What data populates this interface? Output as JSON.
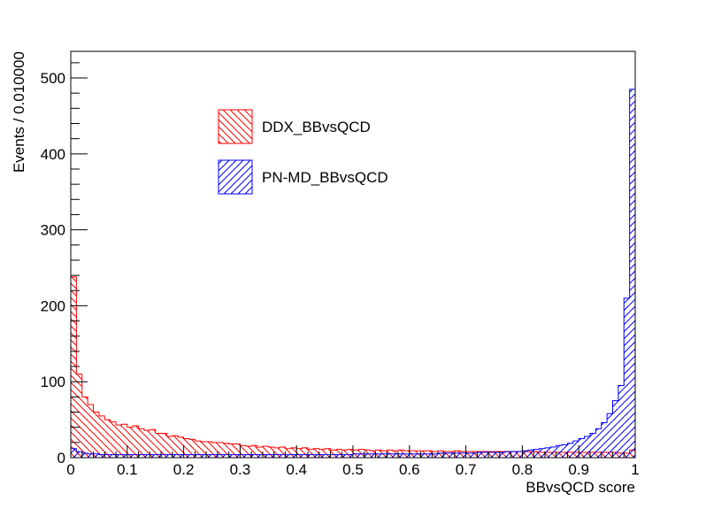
{
  "chart_data": {
    "type": "histogram",
    "xlabel": "BBvsQCD score",
    "ylabel": "Events / 0.010000",
    "xlim": [
      0,
      1
    ],
    "ylim": [
      0,
      535
    ],
    "bin_width": 0.01,
    "x_ticks": [
      "0",
      "0.1",
      "0.2",
      "0.3",
      "0.4",
      "0.5",
      "0.6",
      "0.7",
      "0.8",
      "0.9",
      "1"
    ],
    "y_ticks": [
      "0",
      "100",
      "200",
      "300",
      "400",
      "500"
    ],
    "legend_position": "upper-left",
    "series": [
      {
        "name": "DDX_BBvsQCD",
        "color": "#ff0000",
        "hatch": "backslash",
        "values": [
          238,
          110,
          80,
          70,
          60,
          55,
          50,
          47,
          43,
          44,
          40,
          42,
          38,
          36,
          37,
          32,
          32,
          28,
          29,
          27,
          25,
          24,
          22,
          21,
          21,
          20,
          20,
          19,
          18,
          18,
          16,
          15,
          16,
          14,
          15,
          14,
          13,
          14,
          12,
          13,
          12,
          13,
          11,
          12,
          11,
          12,
          10,
          11,
          10,
          11,
          10,
          11,
          10,
          9,
          10,
          9,
          10,
          9,
          10,
          9,
          9,
          9,
          9,
          9,
          8,
          9,
          8,
          8,
          9,
          8,
          8,
          8,
          8,
          8,
          8,
          8,
          8,
          8,
          8,
          8,
          8,
          8,
          8,
          7,
          7,
          7,
          7,
          7,
          7,
          7,
          7,
          7,
          7,
          7,
          7,
          7,
          7,
          6,
          6,
          10
        ]
      },
      {
        "name": "PN-MD_BBvsQCD",
        "color": "#0000ff",
        "hatch": "slash",
        "values": [
          12,
          8,
          6,
          5,
          5,
          4,
          4,
          4,
          4,
          4,
          4,
          4,
          4,
          4,
          4,
          4,
          4,
          4,
          4,
          4,
          4,
          4,
          4,
          4,
          4,
          4,
          4,
          4,
          4,
          4,
          4,
          4,
          4,
          4,
          4,
          4,
          4,
          4,
          4,
          4,
          4,
          4,
          4,
          4,
          4,
          4,
          4,
          4,
          4,
          4,
          5,
          5,
          5,
          5,
          5,
          5,
          5,
          5,
          5,
          5,
          5,
          5,
          5,
          5,
          5,
          6,
          6,
          6,
          6,
          6,
          6,
          6,
          7,
          7,
          7,
          7,
          7,
          8,
          8,
          8,
          9,
          10,
          11,
          12,
          13,
          14,
          16,
          17,
          19,
          22,
          25,
          28,
          32,
          38,
          46,
          58,
          75,
          95,
          210,
          485
        ]
      }
    ]
  }
}
